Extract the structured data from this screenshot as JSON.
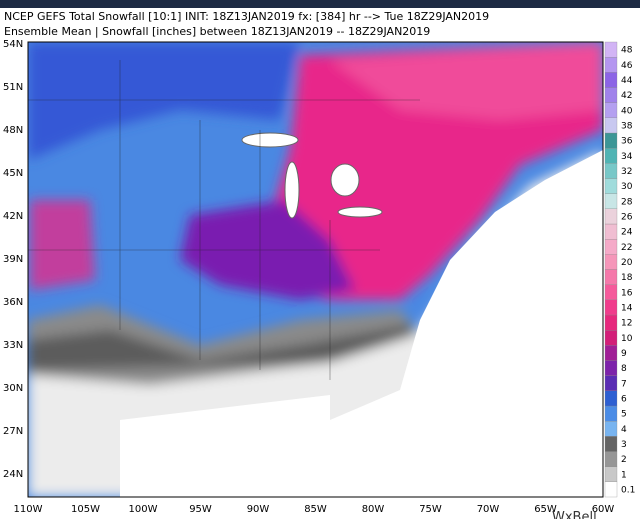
{
  "header": {
    "line1": "NCEP GEFS Total Snowfall [10:1] INIT: 18Z13JAN2019 fx: [384] hr --> Tue 18Z29JAN2019",
    "line2": "Ensemble Mean | Snowfall [inches] between 18Z13JAN2019 -- 18Z29JAN2019"
  },
  "map": {
    "lat_labels": [
      "54N",
      "51N",
      "48N",
      "45N",
      "42N",
      "39N",
      "36N",
      "33N",
      "30N",
      "27N",
      "24N"
    ],
    "lon_labels": [
      "110W",
      "105W",
      "100W",
      "95W",
      "90W",
      "85W",
      "80W",
      "75W",
      "70W",
      "65W",
      "60W"
    ]
  },
  "colorbar": {
    "labels": [
      0.1,
      1,
      2,
      3,
      4,
      5,
      6,
      7,
      8,
      9,
      10,
      12,
      14,
      16,
      18,
      20,
      22,
      24,
      26,
      28,
      30,
      32,
      34,
      36,
      38,
      40,
      42,
      44,
      46,
      48
    ],
    "colors": [
      "#ffffff",
      "#c8c8c8",
      "#969696",
      "#646464",
      "#78b4f0",
      "#4b8ce6",
      "#2d5fd2",
      "#5a2db4",
      "#7d23aa",
      "#a01e96",
      "#d21e78",
      "#e6287d",
      "#f03c8c",
      "#f55a9b",
      "#f578aa",
      "#f596b9",
      "#f5aac8",
      "#f0bed2",
      "#ebd2dc",
      "#c8e6e6",
      "#a0dcdc",
      "#78c8c8",
      "#50b4b4",
      "#3c9696",
      "#c8c8f0",
      "#b4a0f0",
      "#a082eb",
      "#8c64e6",
      "#b496f0",
      "#d2b4f5"
    ]
  },
  "watermark": "WxBell"
}
